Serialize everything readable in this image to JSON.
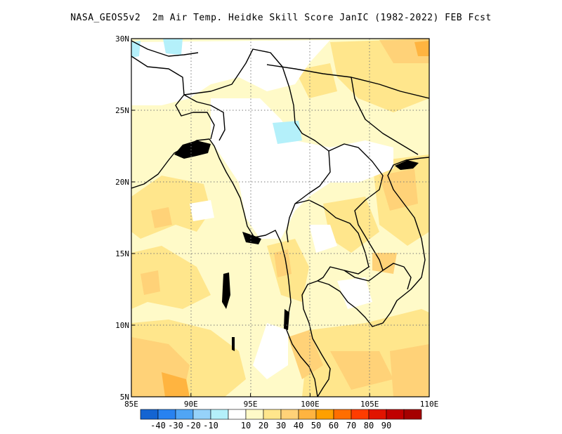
{
  "title": "NASA_GEOS5v2  2m Air Temp. Heidke Skill Score JanIC (1982-2022) FEB Fcst",
  "map": {
    "lon_range": [
      85,
      110
    ],
    "lat_range": [
      5,
      30
    ],
    "x_ticks": [
      {
        "value": 85,
        "label": "85E"
      },
      {
        "value": 90,
        "label": "90E"
      },
      {
        "value": 95,
        "label": "95E"
      },
      {
        "value": 100,
        "label": "100E"
      },
      {
        "value": 105,
        "label": "105E"
      },
      {
        "value": 110,
        "label": "110E"
      }
    ],
    "y_ticks": [
      {
        "value": 30,
        "label": "30N"
      },
      {
        "value": 25,
        "label": "25N"
      },
      {
        "value": 20,
        "label": "20N"
      },
      {
        "value": 15,
        "label": "15N"
      },
      {
        "value": 10,
        "label": "10N"
      },
      {
        "value": 5,
        "label": "5N"
      }
    ],
    "gridlines": "dotted"
  },
  "colorbar": {
    "colors": [
      "#1464d2",
      "#2882f0",
      "#50a5f5",
      "#96d2fa",
      "#b4f0fa",
      "#ffffff",
      "#fffac8",
      "#ffe68c",
      "#ffd278",
      "#ffb440",
      "#ffa000",
      "#ff6e00",
      "#ff3c00",
      "#e11400",
      "#c00000",
      "#a50000"
    ],
    "labels": [
      "-40",
      "-30",
      "-20",
      "-10",
      "10",
      "20",
      "30",
      "40",
      "50",
      "60",
      "70",
      "80",
      "90"
    ]
  },
  "chart_data": {
    "type": "heatmap",
    "title": "NASA_GEOS5v2  2m Air Temp. Heidke Skill Score JanIC (1982-2022) FEB Fcst",
    "xlabel": "",
    "ylabel": "",
    "x_range": [
      85,
      110
    ],
    "y_range": [
      5,
      30
    ],
    "levels": [
      -40,
      -30,
      -20,
      -10,
      10,
      20,
      30,
      40,
      50,
      60,
      70,
      80,
      90
    ]
  }
}
